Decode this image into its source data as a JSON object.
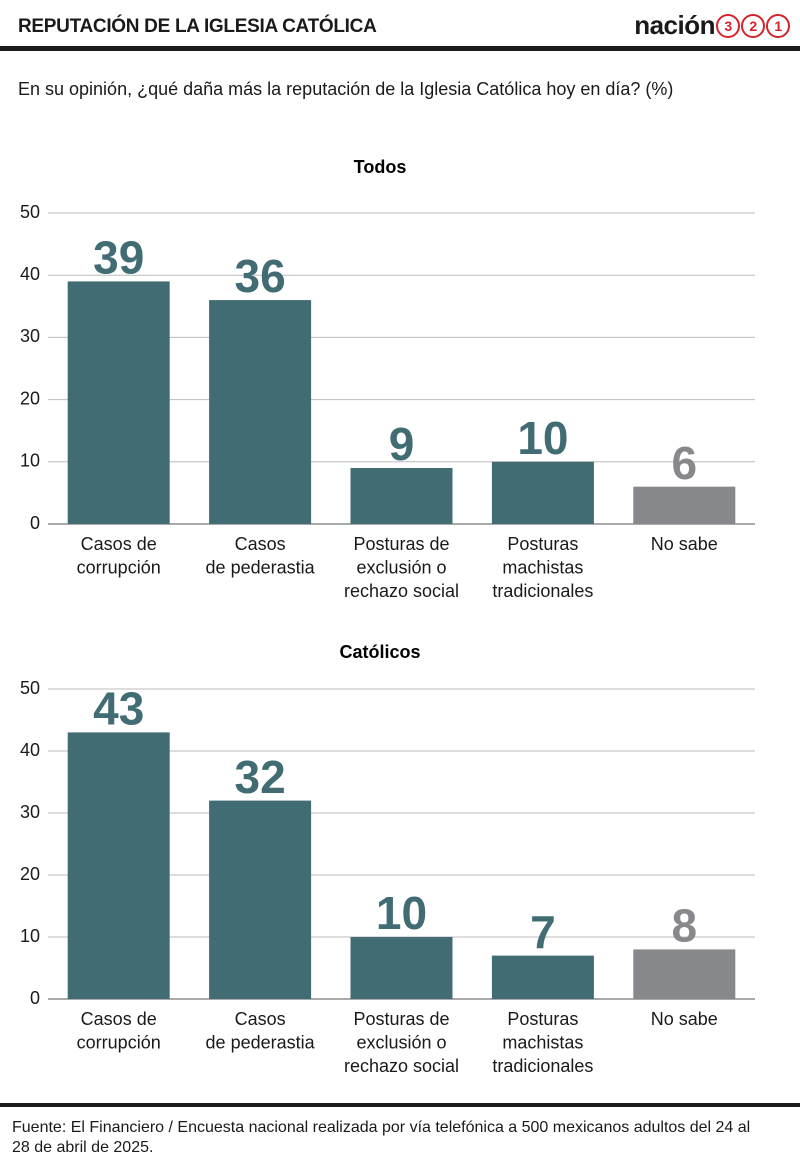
{
  "header": {
    "title": "REPUTACIÓN DE LA IGLESIA CATÓLICA",
    "logo": {
      "text": "nación",
      "digits": [
        "3",
        "2",
        "1"
      ]
    }
  },
  "question": "En su opinión, ¿qué daña más la reputación de la Iglesia Católica hoy en día? (%)",
  "chart_data": [
    {
      "type": "bar",
      "title": "Todos",
      "categories": [
        [
          "Casos de",
          "corrupción"
        ],
        [
          "Casos",
          "de pederastia"
        ],
        [
          "Posturas de",
          "exclusión o",
          "rechazo social"
        ],
        [
          "Posturas",
          "machistas",
          "tradicionales"
        ],
        [
          "No sabe"
        ]
      ],
      "values": [
        39,
        36,
        9,
        10,
        6
      ],
      "colors": [
        "#416c74",
        "#416c74",
        "#416c74",
        "#416c74",
        "#86888b"
      ],
      "ylim": [
        0,
        50
      ],
      "yticks": [
        0,
        10,
        20,
        30,
        40,
        50
      ],
      "grid": true
    },
    {
      "type": "bar",
      "title": "Católicos",
      "categories": [
        [
          "Casos de",
          "corrupción"
        ],
        [
          "Casos",
          "de pederastia"
        ],
        [
          "Posturas de",
          "exclusión o",
          "rechazo social"
        ],
        [
          "Posturas",
          "machistas",
          "tradicionales"
        ],
        [
          "No sabe"
        ]
      ],
      "values": [
        43,
        32,
        10,
        7,
        8
      ],
      "colors": [
        "#416c74",
        "#416c74",
        "#416c74",
        "#416c74",
        "#86888b"
      ],
      "ylim": [
        0,
        50
      ],
      "yticks": [
        0,
        10,
        20,
        30,
        40,
        50
      ],
      "grid": true
    }
  ],
  "source": "Fuente: El Financiero / Encuesta nacional realizada por vía telefónica a 500 mexicanos adultos del 24 al 28 de abril de 2025."
}
